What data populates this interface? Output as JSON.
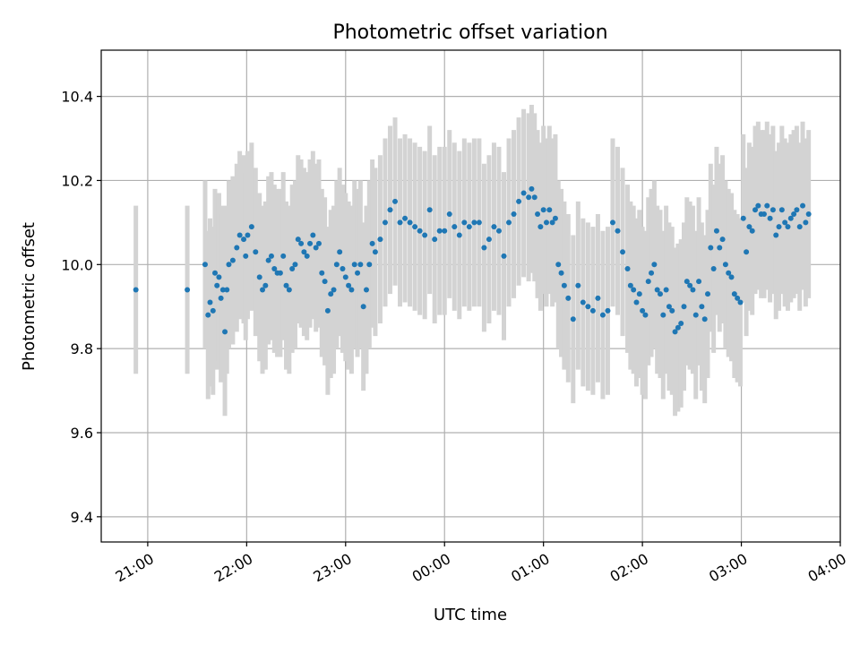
{
  "chart_data": {
    "type": "scatter",
    "title": "Photometric offset variation",
    "xlabel": "UTC time",
    "ylabel": "Photometric offset",
    "x_units": "hours since 21:00 UTC (negative = before 21:00)",
    "xlim": [
      -0.47,
      7.0
    ],
    "ylim": [
      9.34,
      10.51
    ],
    "x_ticks": [
      0,
      1,
      2,
      3,
      4,
      5,
      6,
      7
    ],
    "x_tick_labels": [
      "21:00",
      "22:00",
      "23:00",
      "00:00",
      "01:00",
      "02:00",
      "03:00",
      "04:00"
    ],
    "y_ticks": [
      9.4,
      9.6,
      9.8,
      10.0,
      10.2,
      10.4
    ],
    "y_tick_labels": [
      "9.4",
      "9.6",
      "9.8",
      "10.0",
      "10.2",
      "10.4"
    ],
    "grid": true,
    "colors": {
      "points": "#1f77b4",
      "errorbars": "#d3d3d3",
      "grid": "#b0b0b0"
    },
    "series": [
      {
        "x": [
          -0.12,
          0.4,
          0.58,
          0.61,
          0.63,
          0.66,
          0.68,
          0.7,
          0.72,
          0.74,
          0.76,
          0.78,
          0.8,
          0.82,
          0.86,
          0.9,
          0.93,
          0.97,
          0.99,
          1.01,
          1.05,
          1.09,
          1.13,
          1.16,
          1.19,
          1.22,
          1.25,
          1.28,
          1.31,
          1.34,
          1.37,
          1.4,
          1.43,
          1.46,
          1.49,
          1.52,
          1.55,
          1.58,
          1.61,
          1.64,
          1.67,
          1.7,
          1.73,
          1.76,
          1.79,
          1.82,
          1.85,
          1.88,
          1.91,
          1.94,
          1.97,
          2.0,
          2.03,
          2.06,
          2.09,
          2.12,
          2.15,
          2.18,
          2.21,
          2.24,
          2.27,
          2.3,
          2.35,
          2.4,
          2.45,
          2.5,
          2.55,
          2.6,
          2.65,
          2.7,
          2.75,
          2.8,
          2.85,
          2.9,
          2.95,
          3.0,
          3.05,
          3.1,
          3.15,
          3.2,
          3.25,
          3.3,
          3.35,
          3.4,
          3.45,
          3.5,
          3.55,
          3.6,
          3.65,
          3.7,
          3.75,
          3.8,
          3.85,
          3.88,
          3.91,
          3.94,
          3.97,
          4.0,
          4.03,
          4.06,
          4.09,
          4.12,
          4.15,
          4.18,
          4.21,
          4.25,
          4.3,
          4.35,
          4.4,
          4.45,
          4.5,
          4.55,
          4.6,
          4.65,
          4.7,
          4.75,
          4.8,
          4.85,
          4.88,
          4.91,
          4.94,
          4.97,
          5.0,
          5.03,
          5.06,
          5.09,
          5.12,
          5.15,
          5.18,
          5.21,
          5.24,
          5.27,
          5.3,
          5.33,
          5.36,
          5.39,
          5.42,
          5.45,
          5.48,
          5.51,
          5.54,
          5.57,
          5.6,
          5.63,
          5.66,
          5.69,
          5.72,
          5.75,
          5.78,
          5.81,
          5.84,
          5.87,
          5.9,
          5.93,
          5.96,
          5.99,
          6.02,
          6.05,
          6.08,
          6.11,
          6.14,
          6.17,
          6.2,
          6.23,
          6.26,
          6.29,
          6.32,
          6.35,
          6.38,
          6.41,
          6.44,
          6.47,
          6.5,
          6.53,
          6.56,
          6.59,
          6.62,
          6.65,
          6.68
        ],
        "y": [
          9.94,
          9.94,
          10.0,
          9.88,
          9.91,
          9.89,
          9.98,
          9.95,
          9.97,
          9.92,
          9.94,
          9.84,
          9.94,
          10.0,
          10.01,
          10.04,
          10.07,
          10.06,
          10.02,
          10.07,
          10.09,
          10.03,
          9.97,
          9.94,
          9.95,
          10.01,
          10.02,
          9.99,
          9.98,
          9.98,
          10.02,
          9.95,
          9.94,
          9.99,
          10.0,
          10.06,
          10.05,
          10.03,
          10.02,
          10.05,
          10.07,
          10.04,
          10.05,
          9.98,
          9.96,
          9.89,
          9.93,
          9.94,
          10.0,
          10.03,
          9.99,
          9.97,
          9.95,
          9.94,
          10.0,
          9.98,
          10.0,
          9.9,
          9.94,
          10.0,
          10.05,
          10.03,
          10.06,
          10.1,
          10.13,
          10.15,
          10.1,
          10.11,
          10.1,
          10.09,
          10.08,
          10.07,
          10.13,
          10.06,
          10.08,
          10.08,
          10.12,
          10.09,
          10.07,
          10.1,
          10.09,
          10.1,
          10.1,
          10.04,
          10.06,
          10.09,
          10.08,
          10.02,
          10.1,
          10.12,
          10.15,
          10.17,
          10.16,
          10.18,
          10.16,
          10.12,
          10.09,
          10.13,
          10.1,
          10.13,
          10.1,
          10.11,
          10.0,
          9.98,
          9.95,
          9.92,
          9.87,
          9.95,
          9.91,
          9.9,
          9.89,
          9.92,
          9.88,
          9.89,
          10.1,
          10.08,
          10.03,
          9.99,
          9.95,
          9.94,
          9.91,
          9.93,
          9.89,
          9.88,
          9.96,
          9.98,
          10.0,
          9.94,
          9.93,
          9.88,
          9.94,
          9.9,
          9.89,
          9.84,
          9.85,
          9.86,
          9.9,
          9.96,
          9.95,
          9.94,
          9.88,
          9.96,
          9.9,
          9.87,
          9.93,
          10.04,
          9.99,
          10.08,
          10.04,
          10.06,
          10.0,
          9.98,
          9.97,
          9.93,
          9.92,
          9.91,
          10.11,
          10.03,
          10.09,
          10.08,
          10.13,
          10.14,
          10.12,
          10.12,
          10.14,
          10.11,
          10.13,
          10.07,
          10.09,
          10.13,
          10.1,
          10.09,
          10.11,
          10.12,
          10.13,
          10.09,
          10.14,
          10.1,
          10.12
        ],
        "errorbar_halfwidth": 0.2
      }
    ]
  }
}
